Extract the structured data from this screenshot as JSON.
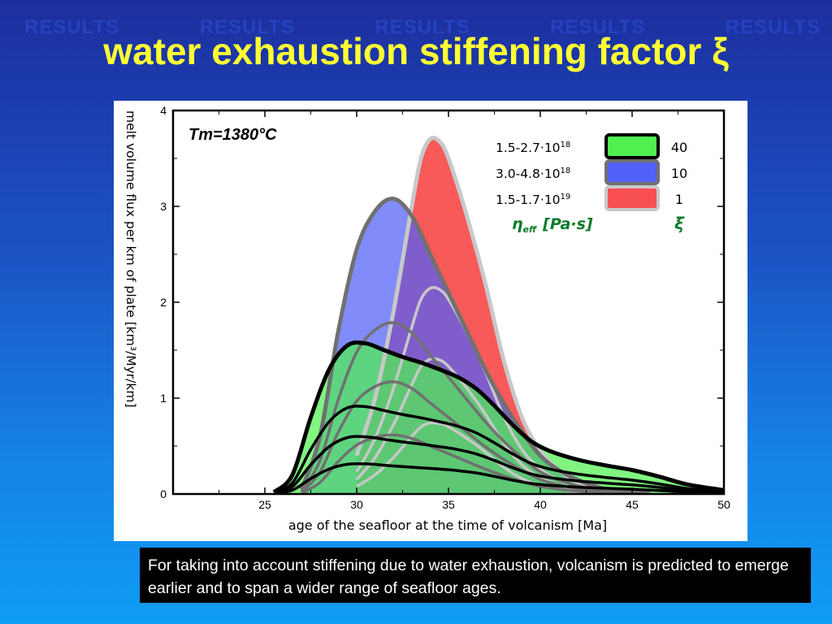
{
  "watermark": [
    "RESULTS",
    "RESULTS",
    "RESULTS",
    "RESULTS",
    "RESULTS"
  ],
  "title": "water exhaustion stiffening factor ξ",
  "caption": "For taking into account stiffening due to water exhaustion, volcanism is predicted to emerge earlier and to span a wider range of seafloor ages.",
  "chart_data": {
    "type": "area",
    "annotation": "Tm=1380°C",
    "xlabel": "age of the seafloor at the time of volcanism [Ma]",
    "ylabel": "melt volume flux per km of plate [km³/Myr/km]",
    "xlim": [
      20,
      50
    ],
    "ylim": [
      0,
      4
    ],
    "xticks": [
      "25",
      "30",
      "35",
      "40",
      "45",
      "50"
    ],
    "yticks": [
      "0",
      "1",
      "2",
      "3",
      "4"
    ],
    "legend": {
      "rows": [
        {
          "label": "1.5-2.7·10",
          "exp": "18",
          "xi": "40",
          "color": "#50f050"
        },
        {
          "label": "3.0-4.8·10",
          "exp": "18",
          "xi": "10",
          "color": "#5060f8"
        },
        {
          "label": "1.5-1.7·10",
          "exp": "19",
          "xi": "1",
          "color": "#f85050"
        }
      ],
      "header_left": "η",
      "header_left_sub": "eff",
      "header_left_unit": "[Pa·s]",
      "header_right": "ξ"
    },
    "series": [
      {
        "name": "ξ=1",
        "x": [
          30,
          31,
          32,
          33,
          33.5,
          34,
          34.5,
          35,
          36,
          37,
          38,
          39,
          40,
          41,
          42,
          43,
          44,
          45
        ],
        "y": [
          0.4,
          1.0,
          1.9,
          3.0,
          3.5,
          3.7,
          3.68,
          3.5,
          2.9,
          2.2,
          1.4,
          0.8,
          0.45,
          0.25,
          0.12,
          0.06,
          0.02,
          0
        ]
      },
      {
        "name": "ξ=10",
        "x": [
          27,
          28,
          29,
          30,
          31,
          32,
          33,
          34,
          35,
          36,
          37,
          38,
          39,
          40,
          41,
          42,
          43,
          44,
          45,
          46
        ],
        "y": [
          0.05,
          0.6,
          1.7,
          2.55,
          2.95,
          3.08,
          2.9,
          2.5,
          2.1,
          1.7,
          1.3,
          0.95,
          0.65,
          0.4,
          0.25,
          0.15,
          0.08,
          0.04,
          0.02,
          0
        ]
      },
      {
        "name": "ξ=40",
        "x": [
          25.5,
          26.5,
          27.5,
          28.5,
          29.5,
          30.5,
          31.5,
          32.5,
          33.5,
          34.5,
          35.5,
          36.5,
          37.5,
          38.5,
          39.5,
          40.5,
          42,
          43.5,
          45,
          46.5,
          48,
          50
        ],
        "y": [
          0.02,
          0.2,
          0.8,
          1.3,
          1.55,
          1.57,
          1.5,
          1.43,
          1.37,
          1.3,
          1.22,
          1.1,
          0.92,
          0.72,
          0.55,
          0.45,
          0.36,
          0.3,
          0.25,
          0.18,
          0.1,
          0.04
        ]
      }
    ]
  }
}
